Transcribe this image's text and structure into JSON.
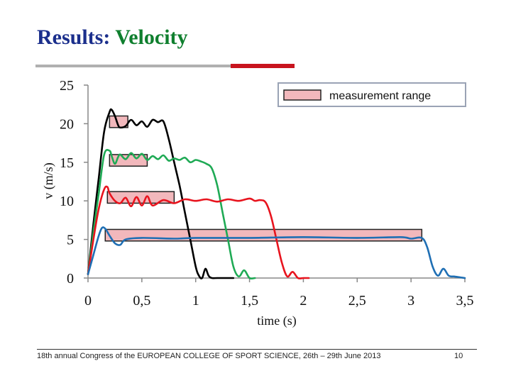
{
  "slide": {
    "title_prefix": "Results:",
    "title_main": "Velocity",
    "footer_text": "18th annual Congress of the EUROPEAN COLLEGE OF SPORT SCIENCE, 26th – 29th June 2013",
    "page_number": "10"
  },
  "chart_data": {
    "type": "line",
    "title": "Results: Velocity",
    "xlabel": "time (s)",
    "ylabel": "v (m/s)",
    "xlim": [
      0,
      3.5
    ],
    "ylim": [
      0,
      25
    ],
    "xticks": [
      0,
      0.5,
      1,
      1.5,
      2,
      2.5,
      3,
      3.5
    ],
    "xtick_labels": [
      "0",
      "0,5",
      "1",
      "1,5",
      "2",
      "2,5",
      "3",
      "3,5"
    ],
    "yticks": [
      0,
      5,
      10,
      15,
      20,
      25
    ],
    "ytick_labels": [
      "0",
      "5",
      "10",
      "15",
      "20",
      "25"
    ],
    "legend": {
      "label": "measurement range",
      "placement": "top-right"
    },
    "colors": {
      "black": "#000000",
      "green": "#1faa55",
      "red": "#e8141e",
      "blue": "#1f6fb4",
      "range_fill": "#f2b8bc",
      "range_edge": "#222222"
    },
    "measurement_ranges": [
      {
        "series": "black",
        "x": [
          0.2,
          0.37
        ],
        "y": [
          19.5,
          21.0
        ]
      },
      {
        "series": "green",
        "x": [
          0.2,
          0.55
        ],
        "y": [
          14.5,
          16.0
        ]
      },
      {
        "series": "red",
        "x": [
          0.18,
          0.8
        ],
        "y": [
          9.7,
          11.2
        ]
      },
      {
        "series": "blue",
        "x": [
          0.16,
          3.1
        ],
        "y": [
          4.8,
          6.3
        ]
      }
    ],
    "series": [
      {
        "name": "black",
        "color": "#000000",
        "x": [
          0,
          0.05,
          0.1,
          0.15,
          0.2,
          0.22,
          0.25,
          0.28,
          0.3,
          0.35,
          0.4,
          0.45,
          0.5,
          0.55,
          0.6,
          0.65,
          0.7,
          0.75,
          0.8,
          0.85,
          0.9,
          0.95,
          1.0,
          1.03,
          1.06,
          1.09,
          1.12,
          1.15,
          1.2,
          1.3,
          1.35
        ],
        "y": [
          0.5,
          7,
          13,
          19,
          21.5,
          21.8,
          21.0,
          19.8,
          19.5,
          19.7,
          20.5,
          19.8,
          20.3,
          19.6,
          20.5,
          20.2,
          20.3,
          18,
          15,
          12,
          8.5,
          5,
          1.5,
          0.3,
          0,
          1.2,
          0.3,
          0,
          0,
          0,
          0
        ]
      },
      {
        "name": "green",
        "color": "#1faa55",
        "x": [
          0,
          0.05,
          0.1,
          0.15,
          0.2,
          0.22,
          0.25,
          0.28,
          0.3,
          0.35,
          0.4,
          0.45,
          0.5,
          0.55,
          0.6,
          0.65,
          0.7,
          0.75,
          0.8,
          0.85,
          0.9,
          0.95,
          1.0,
          1.05,
          1.1,
          1.15,
          1.2,
          1.25,
          1.3,
          1.35,
          1.4,
          1.45,
          1.5,
          1.55
        ],
        "y": [
          0.5,
          6,
          11,
          16,
          16.5,
          15.8,
          14.8,
          15.7,
          16.0,
          15.4,
          16.2,
          15.5,
          16.1,
          15.3,
          15.8,
          15.4,
          15.9,
          15.2,
          15.5,
          15.3,
          15.6,
          15.0,
          15.3,
          15.1,
          14.8,
          14.2,
          12,
          8.5,
          5,
          1.5,
          0.2,
          1.0,
          0,
          0
        ]
      },
      {
        "name": "red",
        "color": "#e8141e",
        "x": [
          0,
          0.05,
          0.1,
          0.15,
          0.18,
          0.2,
          0.25,
          0.3,
          0.35,
          0.4,
          0.45,
          0.5,
          0.55,
          0.6,
          0.7,
          0.8,
          0.9,
          1.0,
          1.1,
          1.2,
          1.3,
          1.4,
          1.5,
          1.55,
          1.6,
          1.65,
          1.7,
          1.75,
          1.8,
          1.85,
          1.9,
          1.95,
          2.0,
          2.05
        ],
        "y": [
          0.5,
          5,
          9,
          11.5,
          11.8,
          11.0,
          10.0,
          9.7,
          10.4,
          9.3,
          10.5,
          9.4,
          10.6,
          9.4,
          10.1,
          9.7,
          10.2,
          10.0,
          10.2,
          9.9,
          10.2,
          10.0,
          10.3,
          10.0,
          10.1,
          9.8,
          8,
          5,
          2,
          0.2,
          0.8,
          0,
          0,
          0
        ]
      },
      {
        "name": "blue",
        "color": "#1f6fb4",
        "x": [
          0,
          0.05,
          0.1,
          0.13,
          0.16,
          0.2,
          0.25,
          0.3,
          0.35,
          0.5,
          0.8,
          1.0,
          1.5,
          2.0,
          2.5,
          2.9,
          3.0,
          3.1,
          3.15,
          3.2,
          3.25,
          3.3,
          3.35,
          3.4,
          3.45,
          3.5
        ],
        "y": [
          0.5,
          3,
          5.5,
          6.5,
          6.4,
          5.5,
          4.5,
          4.3,
          5,
          5.2,
          5.1,
          5.2,
          5.2,
          5.3,
          5.2,
          5.3,
          5.1,
          5.2,
          4,
          1.5,
          0.3,
          1.2,
          0.3,
          0.2,
          0.1,
          0
        ]
      }
    ]
  }
}
